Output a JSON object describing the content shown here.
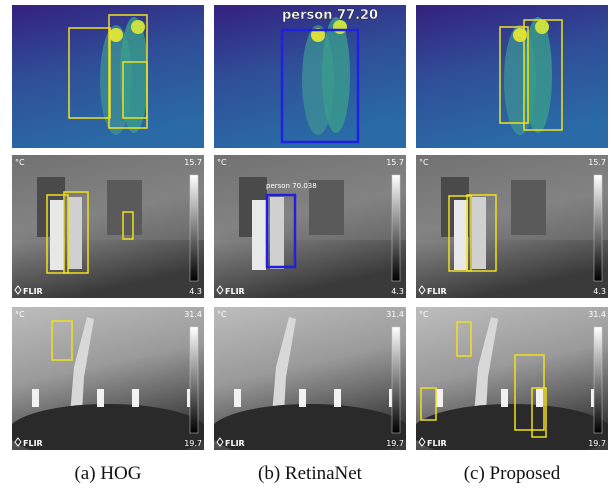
{
  "captions": [
    "(a) HOG",
    "(b) RetinaNet",
    "(c) Proposed"
  ],
  "rows": [
    {
      "detection": "person 77.20"
    },
    {
      "unit": "°C",
      "scale_max": "15.7",
      "scale_min": "4.3",
      "brand": "FLIR",
      "detection": "person 70.038"
    },
    {
      "unit": "°C",
      "scale_max": "31.4",
      "scale_min": "19.7",
      "brand": "FLIR"
    }
  ]
}
